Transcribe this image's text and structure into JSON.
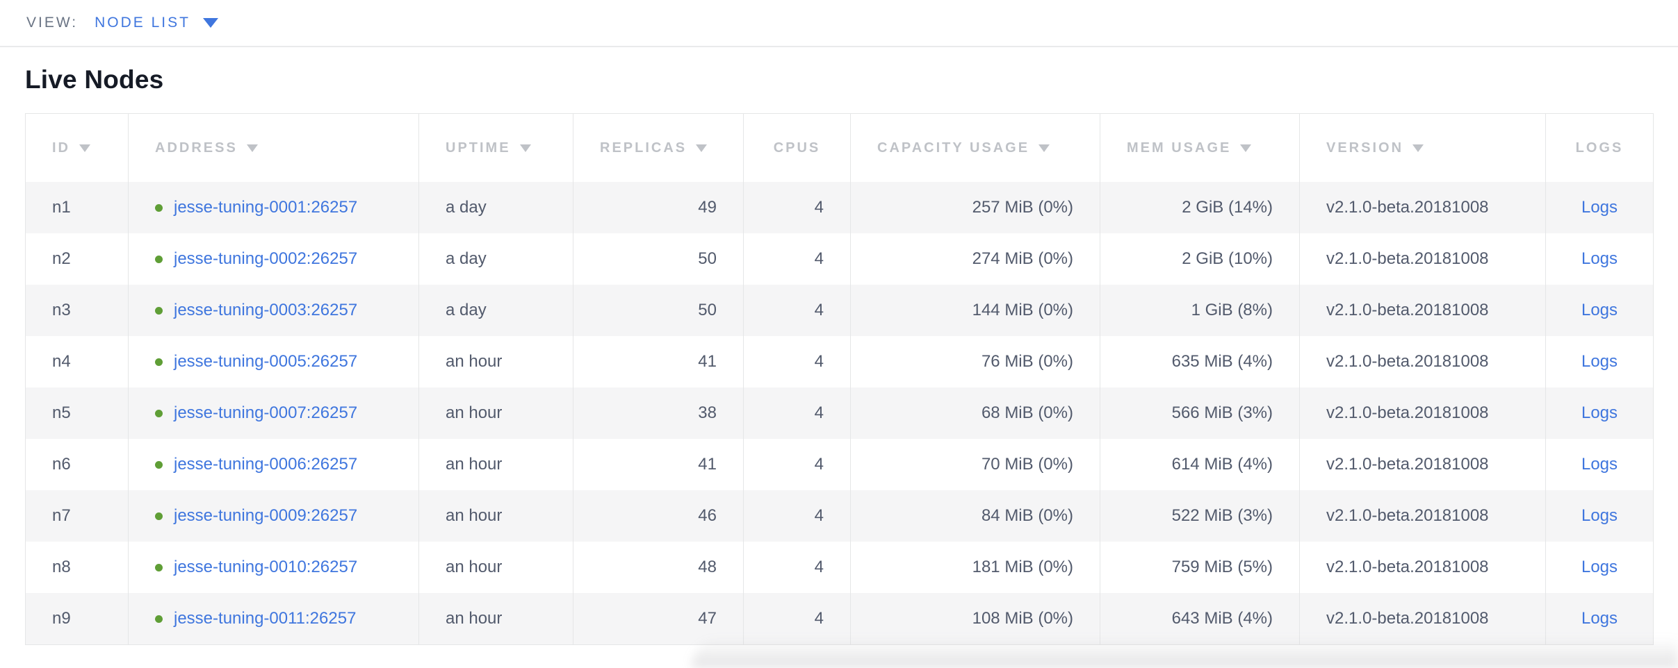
{
  "view_bar": {
    "label": "VIEW:",
    "selected": "NODE LIST"
  },
  "page": {
    "title": "Live Nodes"
  },
  "table": {
    "columns": [
      {
        "key": "id",
        "label": "ID",
        "sortable": true,
        "align": "left",
        "header_align": "left"
      },
      {
        "key": "address",
        "label": "ADDRESS",
        "sortable": true,
        "align": "left",
        "header_align": "left"
      },
      {
        "key": "uptime",
        "label": "UPTIME",
        "sortable": true,
        "align": "left",
        "header_align": "left"
      },
      {
        "key": "replicas",
        "label": "REPLICAS",
        "sortable": true,
        "align": "right",
        "header_align": "left"
      },
      {
        "key": "cpus",
        "label": "CPUS",
        "sortable": false,
        "align": "right",
        "header_align": "center"
      },
      {
        "key": "capacity",
        "label": "CAPACITY USAGE",
        "sortable": true,
        "align": "right",
        "header_align": "left"
      },
      {
        "key": "mem",
        "label": "MEM USAGE",
        "sortable": true,
        "align": "right",
        "header_align": "left"
      },
      {
        "key": "version",
        "label": "VERSION",
        "sortable": true,
        "align": "left",
        "header_align": "left"
      },
      {
        "key": "logs",
        "label": "LOGS",
        "sortable": false,
        "align": "center",
        "header_align": "center"
      }
    ],
    "rows": [
      {
        "id": "n1",
        "status": "healthy",
        "address": "jesse-tuning-0001:26257",
        "uptime": "a day",
        "replicas": "49",
        "cpus": "4",
        "capacity": "257 MiB (0%)",
        "mem": "2 GiB (14%)",
        "version": "v2.1.0-beta.20181008",
        "logs": "Logs"
      },
      {
        "id": "n2",
        "status": "healthy",
        "address": "jesse-tuning-0002:26257",
        "uptime": "a day",
        "replicas": "50",
        "cpus": "4",
        "capacity": "274 MiB (0%)",
        "mem": "2 GiB (10%)",
        "version": "v2.1.0-beta.20181008",
        "logs": "Logs"
      },
      {
        "id": "n3",
        "status": "healthy",
        "address": "jesse-tuning-0003:26257",
        "uptime": "a day",
        "replicas": "50",
        "cpus": "4",
        "capacity": "144 MiB (0%)",
        "mem": "1 GiB (8%)",
        "version": "v2.1.0-beta.20181008",
        "logs": "Logs"
      },
      {
        "id": "n4",
        "status": "healthy",
        "address": "jesse-tuning-0005:26257",
        "uptime": "an hour",
        "replicas": "41",
        "cpus": "4",
        "capacity": "76 MiB (0%)",
        "mem": "635 MiB (4%)",
        "version": "v2.1.0-beta.20181008",
        "logs": "Logs"
      },
      {
        "id": "n5",
        "status": "healthy",
        "address": "jesse-tuning-0007:26257",
        "uptime": "an hour",
        "replicas": "38",
        "cpus": "4",
        "capacity": "68 MiB (0%)",
        "mem": "566 MiB (3%)",
        "version": "v2.1.0-beta.20181008",
        "logs": "Logs"
      },
      {
        "id": "n6",
        "status": "healthy",
        "address": "jesse-tuning-0006:26257",
        "uptime": "an hour",
        "replicas": "41",
        "cpus": "4",
        "capacity": "70 MiB (0%)",
        "mem": "614 MiB (4%)",
        "version": "v2.1.0-beta.20181008",
        "logs": "Logs"
      },
      {
        "id": "n7",
        "status": "healthy",
        "address": "jesse-tuning-0009:26257",
        "uptime": "an hour",
        "replicas": "46",
        "cpus": "4",
        "capacity": "84 MiB (0%)",
        "mem": "522 MiB (3%)",
        "version": "v2.1.0-beta.20181008",
        "logs": "Logs"
      },
      {
        "id": "n8",
        "status": "healthy",
        "address": "jesse-tuning-0010:26257",
        "uptime": "an hour",
        "replicas": "48",
        "cpus": "4",
        "capacity": "181 MiB (0%)",
        "mem": "759 MiB (5%)",
        "version": "v2.1.0-beta.20181008",
        "logs": "Logs"
      },
      {
        "id": "n9",
        "status": "healthy",
        "address": "jesse-tuning-0011:26257",
        "uptime": "an hour",
        "replicas": "47",
        "cpus": "4",
        "capacity": "108 MiB (0%)",
        "mem": "643 MiB (4%)",
        "version": "v2.1.0-beta.20181008",
        "logs": "Logs"
      }
    ]
  },
  "colors": {
    "accent_blue": "#3f76de",
    "status_green": "#5f9e36",
    "header_gray": "#bfc2c7",
    "cell_slate": "#525a6c",
    "stripe": "#f5f5f6",
    "grid_line": "#e5e6e7",
    "muted_label": "#6a7484"
  }
}
